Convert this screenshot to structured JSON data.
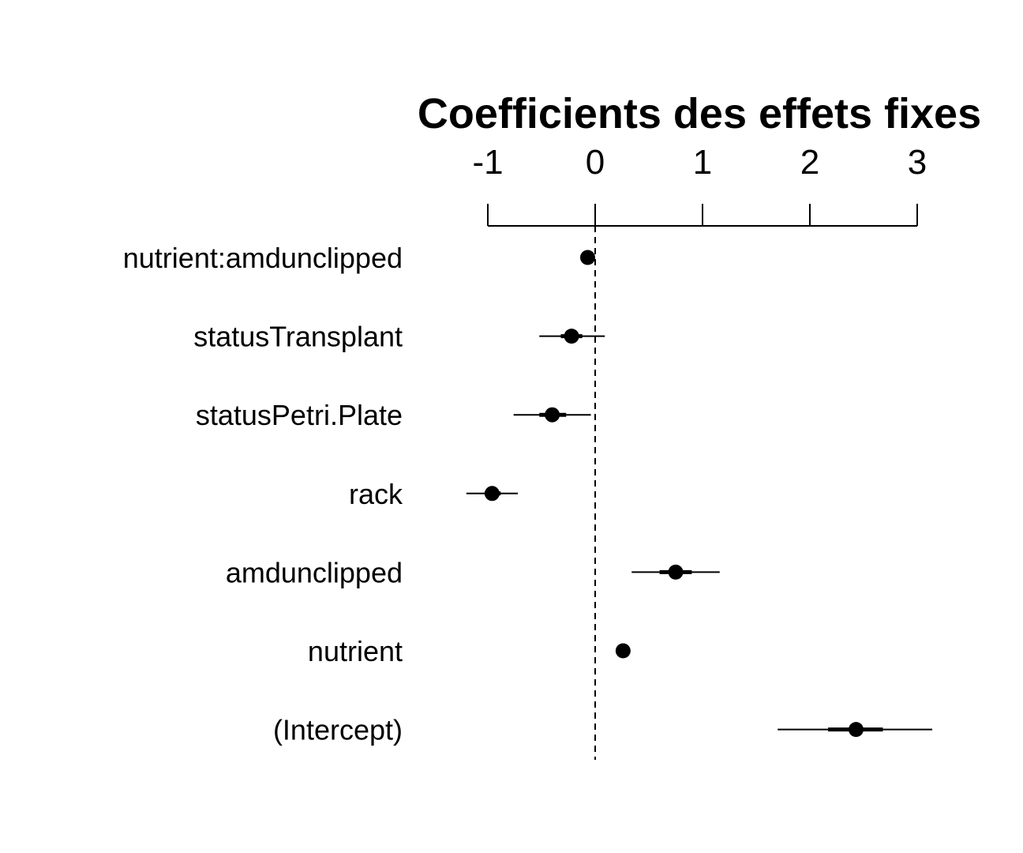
{
  "chart_data": {
    "type": "coefficient-plot",
    "title": "Coefficients des effets fixes",
    "xlim": [
      -1,
      3
    ],
    "x_ticks": [
      -1,
      0,
      1,
      2,
      3
    ],
    "reference_line": 0,
    "axis_position": "top",
    "colors": {
      "ink": "#000000"
    },
    "series": [
      {
        "label": "nutrient:amdunclipped",
        "estimate": -0.07,
        "inner": [
          -0.1,
          -0.04
        ],
        "outer": [
          -0.1,
          -0.04
        ]
      },
      {
        "label": "statusTransplant",
        "estimate": -0.22,
        "inner": [
          -0.32,
          -0.12
        ],
        "outer": [
          -0.52,
          0.09
        ]
      },
      {
        "label": "statusPetri.Plate",
        "estimate": -0.4,
        "inner": [
          -0.52,
          -0.27
        ],
        "outer": [
          -0.76,
          -0.04
        ]
      },
      {
        "label": "rack",
        "estimate": -0.96,
        "inner": [
          -1.03,
          -0.88
        ],
        "outer": [
          -1.2,
          -0.72
        ]
      },
      {
        "label": "amdunclipped",
        "estimate": 0.75,
        "inner": [
          0.6,
          0.9
        ],
        "outer": [
          0.34,
          1.16
        ]
      },
      {
        "label": "nutrient",
        "estimate": 0.26,
        "inner": [
          0.25,
          0.27
        ],
        "outer": [
          0.24,
          0.28
        ]
      },
      {
        "label": "(Intercept)",
        "estimate": 2.43,
        "inner": [
          2.17,
          2.68
        ],
        "outer": [
          1.7,
          3.14
        ]
      }
    ]
  }
}
